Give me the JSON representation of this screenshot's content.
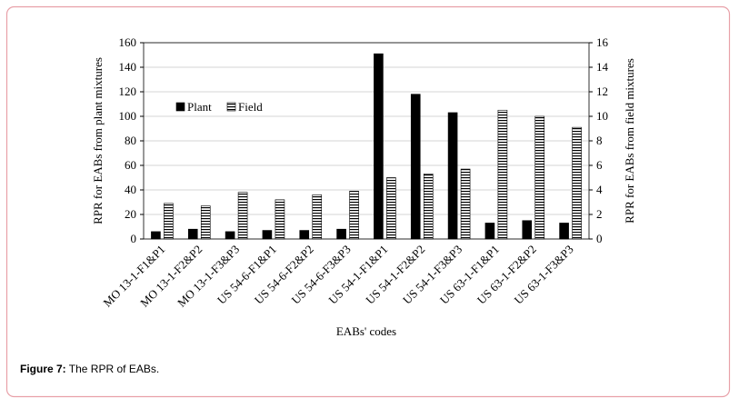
{
  "caption": {
    "label": "Figure 7:",
    "text": "The RPR of EABs."
  },
  "chart_data": {
    "type": "bar",
    "x_label": "EABs' codes",
    "y_label": "RPR for EABs from plant mixtures",
    "y2_label": "RPR for EABs from field mixtures",
    "categories": [
      "MO 13-1-F1&P1",
      "MO 13-1-F2&P2",
      "MO 13-1-F3&P3",
      "US 54-6-F1&P1",
      "US 54-6-F2&P2",
      "US 54-6-F3&P3",
      "US 54-1-F1&P1",
      "US 54-1-F2&P2",
      "US 54-1-F3&P3",
      "US 63-1-F1&P1",
      "US 63-1-F2&P2",
      "US 63-1-F3&P3"
    ],
    "series": [
      {
        "name": "Plant",
        "color": "#000000",
        "fill": "solid",
        "values": [
          6,
          8,
          6,
          7,
          7,
          8,
          151,
          118,
          103,
          13,
          15,
          13
        ]
      },
      {
        "name": "Field",
        "color": "#000000",
        "fill": "horizontal-stripes",
        "axis": "y2",
        "values": [
          2.9,
          2.7,
          3.8,
          3.2,
          3.6,
          3.9,
          5.0,
          5.3,
          5.7,
          10.5,
          10.0,
          9.1
        ]
      }
    ],
    "ylim": [
      0,
      160
    ],
    "yticks": [
      0,
      20,
      40,
      60,
      80,
      100,
      120,
      140,
      160
    ],
    "y2lim": [
      0,
      16
    ],
    "y2ticks": [
      0,
      2,
      4,
      6,
      8,
      10,
      12,
      14,
      16
    ],
    "grid": true,
    "legend": "upper left"
  }
}
